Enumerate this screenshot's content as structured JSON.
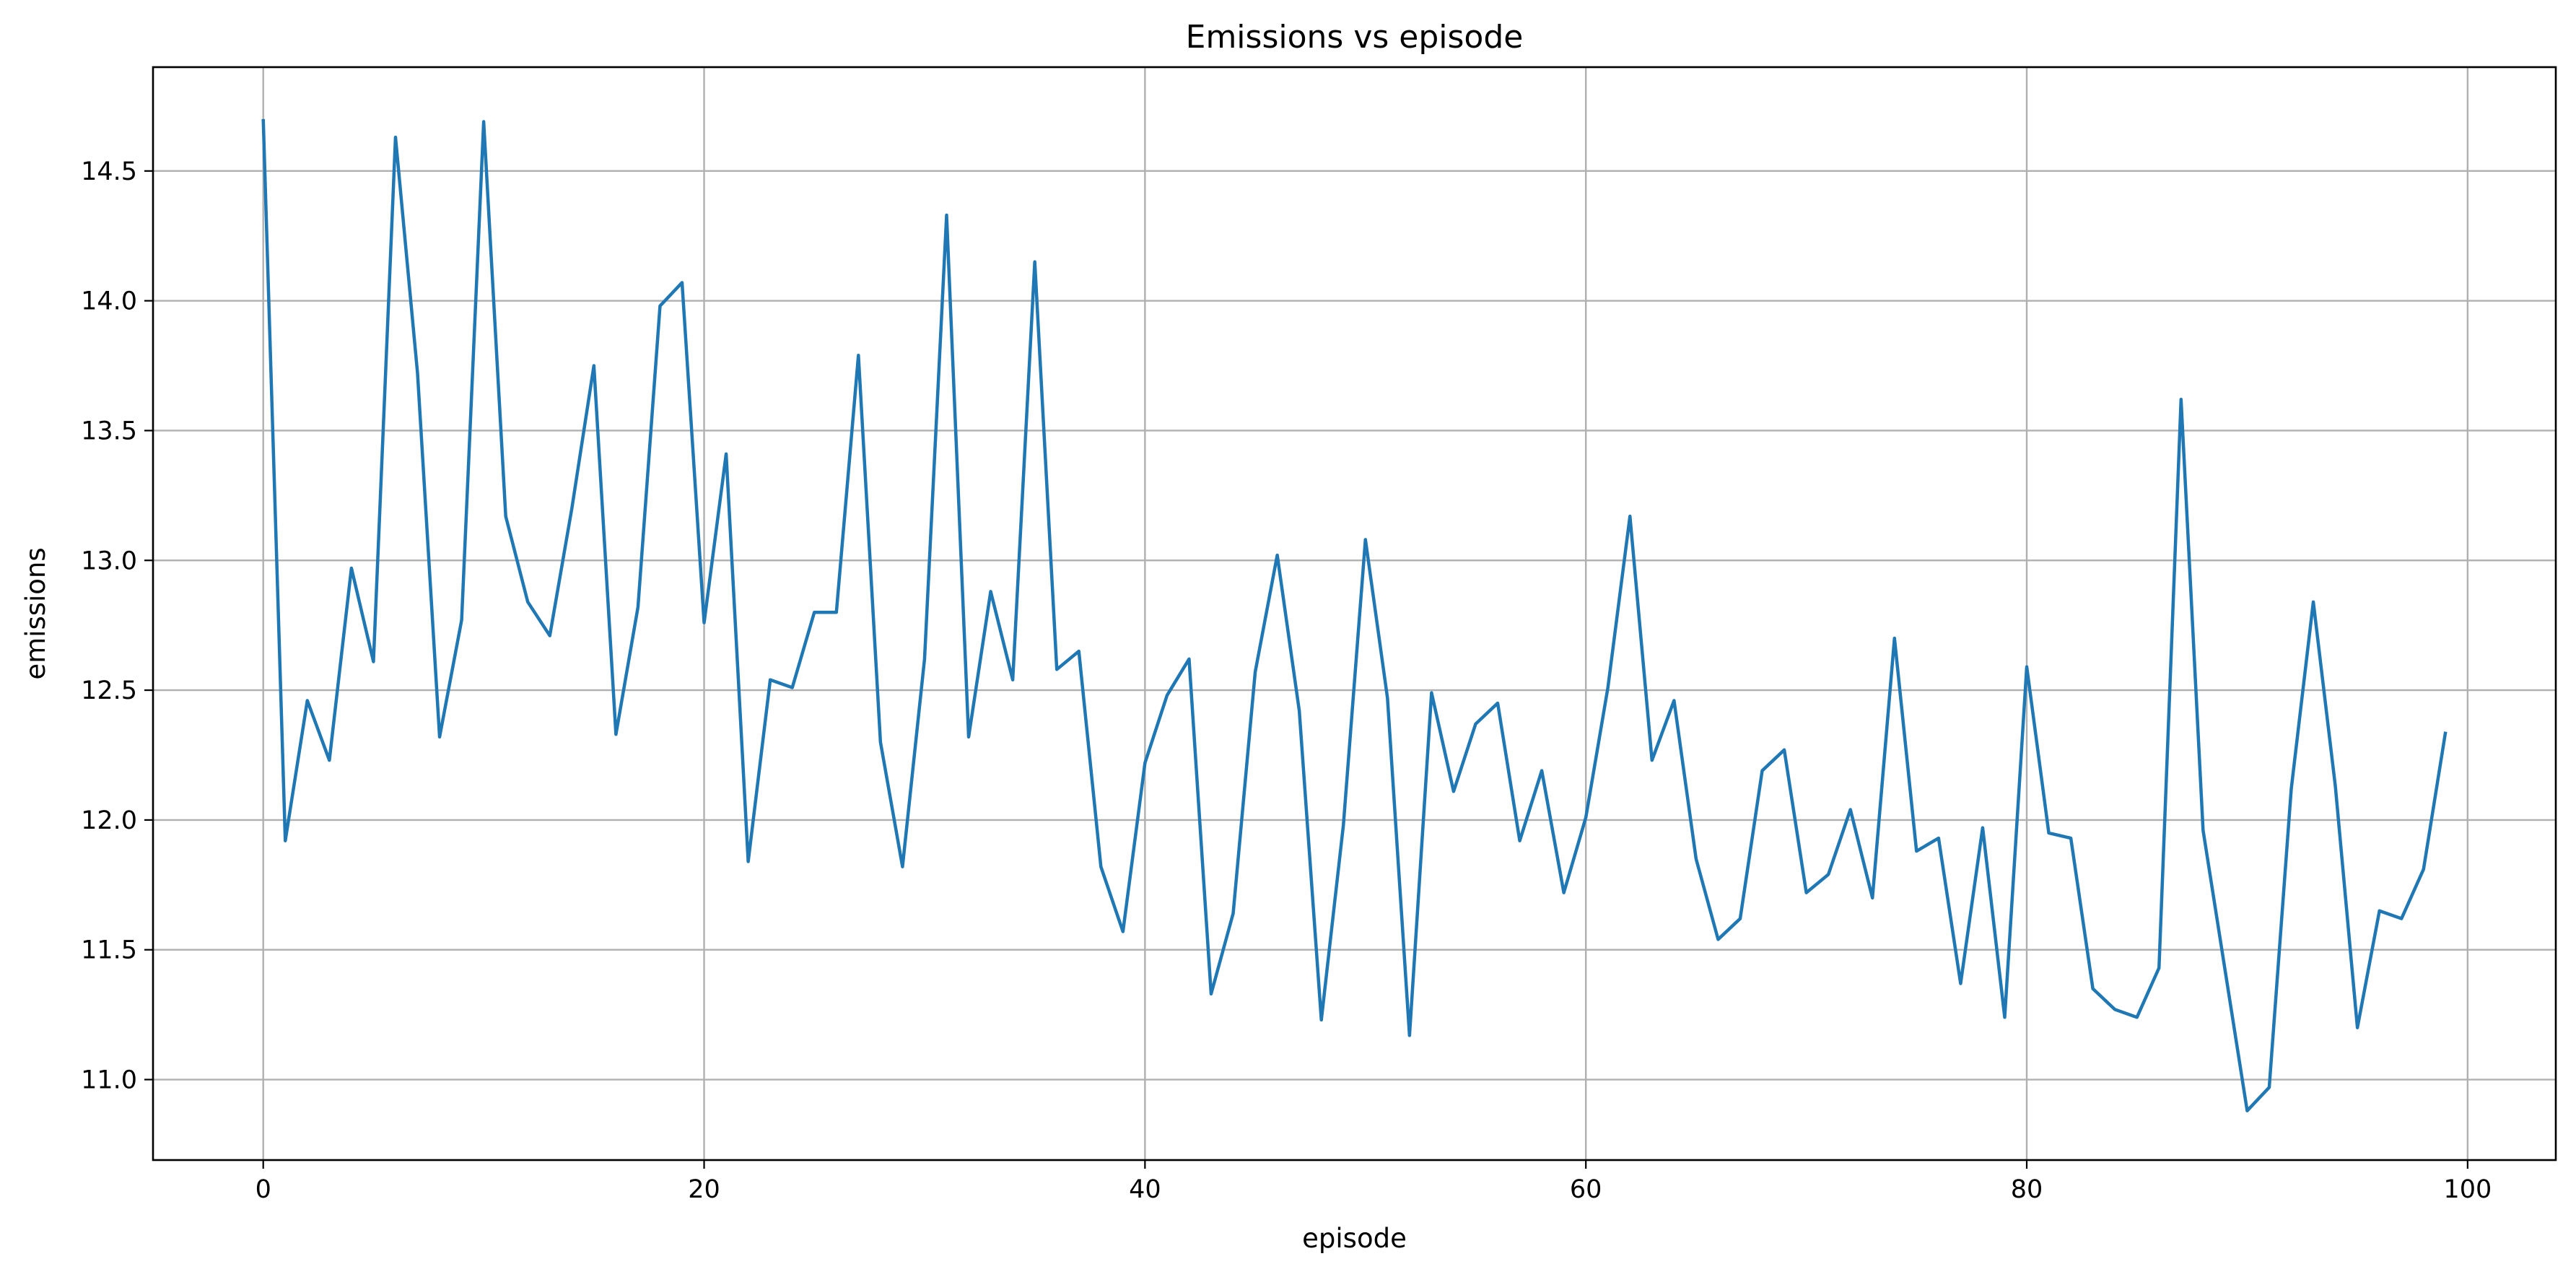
{
  "chart_data": {
    "type": "line",
    "title": "Emissions vs episode",
    "xlabel": "episode",
    "ylabel": "emissions",
    "xlim": [
      -5,
      104
    ],
    "ylim": [
      10.69,
      14.9
    ],
    "grid": true,
    "x_ticks": [
      0,
      20,
      40,
      60,
      80,
      100
    ],
    "x_tick_labels": [
      "0",
      "20",
      "40",
      "60",
      "80",
      "100"
    ],
    "y_ticks": [
      11.0,
      11.5,
      12.0,
      12.5,
      13.0,
      13.5,
      14.0,
      14.5
    ],
    "y_tick_labels": [
      "11.0",
      "11.5",
      "12.0",
      "12.5",
      "13.0",
      "13.5",
      "14.0",
      "14.5"
    ],
    "colors": {
      "line": "#1f77b4",
      "grid": "#b0b0b0"
    },
    "series": [
      {
        "values": [
          14.7,
          11.92,
          12.46,
          12.23,
          12.97,
          12.61,
          14.63,
          13.72,
          12.32,
          12.77,
          14.69,
          13.17,
          12.84,
          12.71,
          13.2,
          13.75,
          12.33,
          12.82,
          13.98,
          14.07,
          12.76,
          13.41,
          11.84,
          12.54,
          12.51,
          12.8,
          12.8,
          13.79,
          12.3,
          11.82,
          12.62,
          14.33,
          12.32,
          12.88,
          12.54,
          14.15,
          12.58,
          12.65,
          11.82,
          11.57,
          12.22,
          12.48,
          12.62,
          11.33,
          11.64,
          12.57,
          13.02,
          12.42,
          11.23,
          11.98,
          13.08,
          12.47,
          11.17,
          12.49,
          12.11,
          12.37,
          12.45,
          11.92,
          12.19,
          11.72,
          12.01,
          12.51,
          13.17,
          12.23,
          12.46,
          11.85,
          11.54,
          11.62,
          12.19,
          12.27,
          11.72,
          11.79,
          12.04,
          11.7,
          12.7,
          11.88,
          11.93,
          11.37,
          11.97,
          11.24,
          12.59,
          11.95,
          11.93,
          11.35,
          11.27,
          11.24,
          11.43,
          13.62,
          11.96,
          11.42,
          10.88,
          10.97,
          12.12,
          12.84,
          12.13,
          11.2,
          11.65,
          11.62,
          11.81,
          12.34
        ]
      }
    ]
  }
}
